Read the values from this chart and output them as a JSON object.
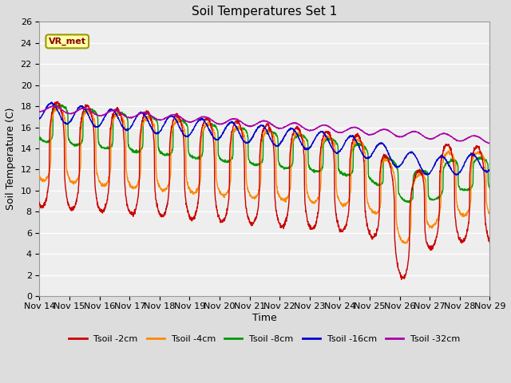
{
  "title": "Soil Temperatures Set 1",
  "xlabel": "Time",
  "ylabel": "Soil Temperature (C)",
  "ylim": [
    0,
    26
  ],
  "yticks": [
    0,
    2,
    4,
    6,
    8,
    10,
    12,
    14,
    16,
    18,
    20,
    22,
    24,
    26
  ],
  "x_labels": [
    "Nov 14",
    "Nov 15",
    "Nov 16",
    "Nov 17",
    "Nov 18",
    "Nov 19",
    "Nov 20",
    "Nov 21",
    "Nov 22",
    "Nov 23",
    "Nov 24",
    "Nov 25",
    "Nov 26",
    "Nov 27",
    "Nov 28",
    "Nov 29"
  ],
  "colors": {
    "Tsoil -2cm": "#cc0000",
    "Tsoil -4cm": "#ff8800",
    "Tsoil -8cm": "#009900",
    "Tsoil -16cm": "#0000cc",
    "Tsoil -32cm": "#aa00aa"
  },
  "legend_labels": [
    "Tsoil -2cm",
    "Tsoil -4cm",
    "Tsoil -8cm",
    "Tsoil -16cm",
    "Tsoil -32cm"
  ],
  "annotation_text": "VR_met",
  "background_color": "#dddddd",
  "plot_bg_color": "#eeeeee",
  "title_fontsize": 11,
  "axis_label_fontsize": 9,
  "tick_fontsize": 8
}
